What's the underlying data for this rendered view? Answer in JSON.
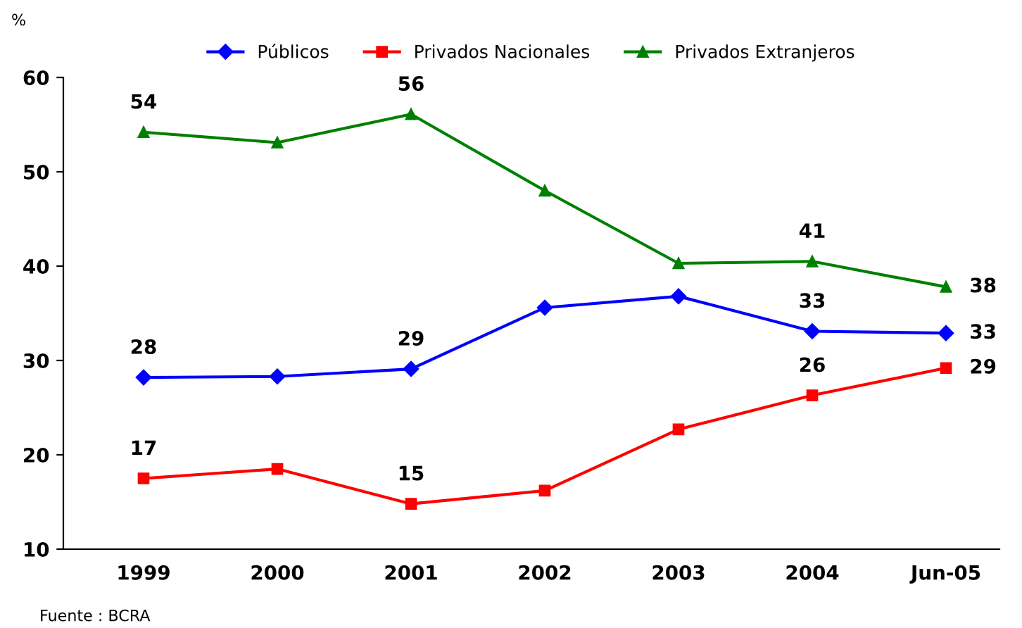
{
  "chart_data": {
    "type": "line",
    "ylabel": "%",
    "categories": [
      "1999",
      "2000",
      "2001",
      "2002",
      "2003",
      "2004",
      "Jun-05"
    ],
    "series": [
      {
        "name": "Públicos",
        "color": "#0000ff",
        "marker": "diamond",
        "values": [
          28.2,
          28.3,
          29.1,
          35.6,
          36.8,
          33.1,
          32.9
        ],
        "value_labels": [
          "28",
          null,
          "29",
          null,
          null,
          "33",
          "33"
        ]
      },
      {
        "name": "Privados Nacionales",
        "color": "#ff0000",
        "marker": "square",
        "values": [
          17.5,
          18.5,
          14.8,
          16.2,
          22.7,
          26.3,
          29.2
        ],
        "value_labels": [
          "17",
          null,
          "15",
          null,
          null,
          "26",
          "29"
        ]
      },
      {
        "name": "Privados Extranjeros",
        "color": "#008000",
        "marker": "triangle",
        "values": [
          54.2,
          53.1,
          56.1,
          48.0,
          40.3,
          40.5,
          37.8
        ],
        "value_labels": [
          "54",
          null,
          "56",
          null,
          null,
          "41",
          "38"
        ]
      }
    ],
    "ylim": [
      10,
      60
    ],
    "yticks": [
      10,
      20,
      30,
      40,
      50,
      60
    ],
    "grid": false,
    "legend": "top",
    "line_style": "solid",
    "annotations": [
      "Fuente : BCRA"
    ]
  }
}
